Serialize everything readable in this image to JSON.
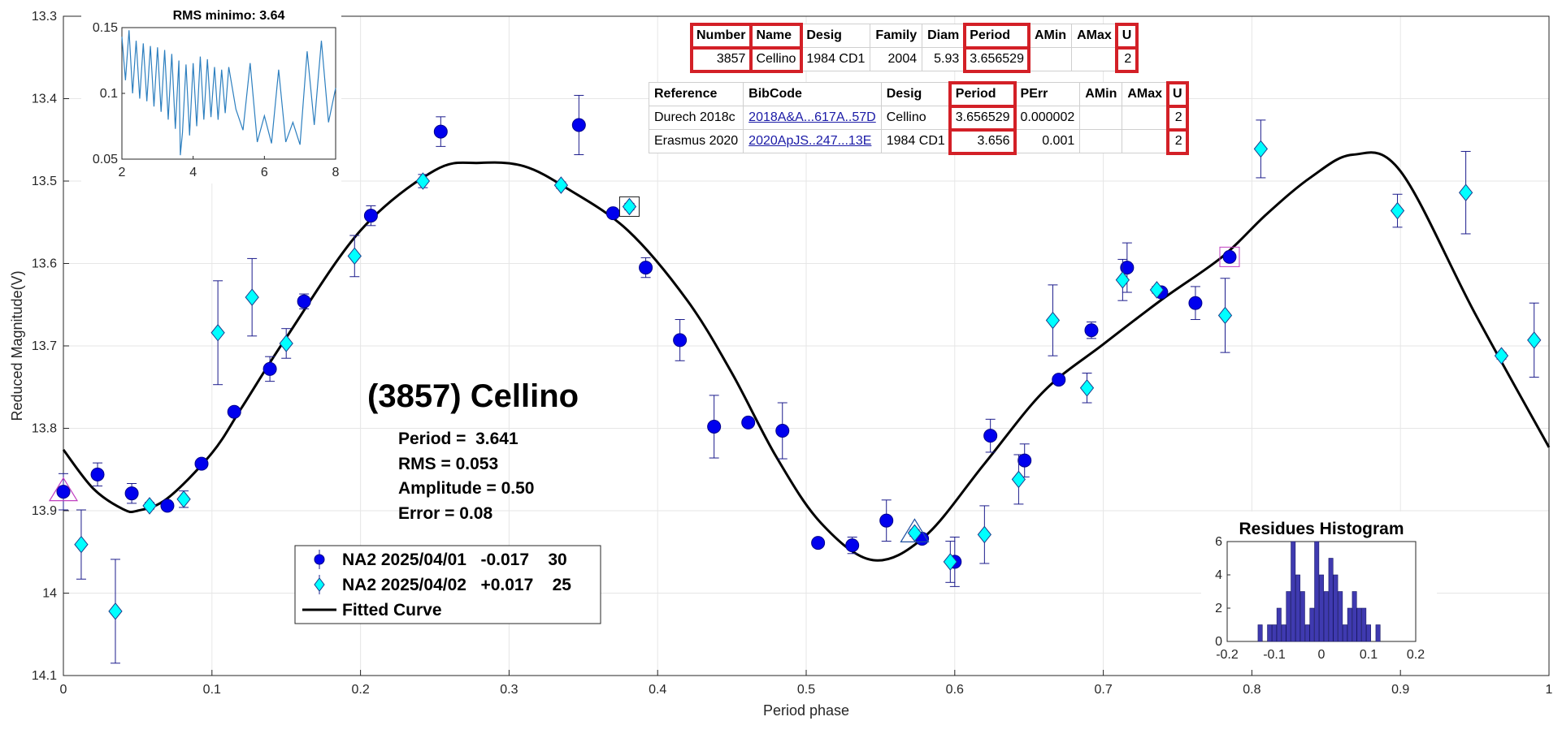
{
  "main_title": "(3857) Cellino",
  "stats": {
    "period": "Period =  3.641",
    "rms": "RMS = 0.053",
    "amplitude": "Amplitude = 0.50",
    "error": "Error = 0.08"
  },
  "legend": {
    "entries": [
      "NA2 2025/04/01   -0.017    30",
      "NA2 2025/04/02   +0.017    25",
      "Fitted Curve"
    ]
  },
  "table1": {
    "headers": [
      "Number",
      "Name",
      "Desig",
      "Family",
      "Diam",
      "Period",
      "AMin",
      "AMax",
      "U"
    ],
    "row": [
      "3857",
      "Cellino",
      "1984 CD1",
      "2004",
      "5.93",
      "3.656529",
      "",
      "",
      "2"
    ]
  },
  "table2": {
    "headers": [
      "Reference",
      "BibCode",
      "Desig",
      "Period",
      "PErr",
      "AMin",
      "AMax",
      "U"
    ],
    "rows": [
      [
        "Durech 2018c",
        "2018A&A...617A..57D",
        "Cellino",
        "3.656529",
        "0.000002",
        "",
        "",
        "2"
      ],
      [
        "Erasmus 2020",
        "2020ApJS..247...13E",
        "1984 CD1",
        "3.656",
        "0.001",
        "",
        "",
        "2"
      ]
    ]
  },
  "colors": {
    "series1": "#0000ee",
    "series2": "#00ffff",
    "curve": "#000000",
    "highlight": "#d32027",
    "histogram": "#3f3ab0"
  },
  "chart_data": [
    {
      "type": "scatter",
      "xlabel": "Period phase",
      "ylabel": "Reduced Magnitude(V)",
      "xlim": [
        0,
        1
      ],
      "ylim": [
        14.1,
        13.3
      ],
      "y_inverted": true,
      "grid": true,
      "xticks": [
        "0",
        "0.1",
        "0.2",
        "0.3",
        "0.4",
        "0.5",
        "0.6",
        "0.7",
        "0.8",
        "0.9",
        "1"
      ],
      "yticks": [
        "13.3",
        "13.4",
        "13.5",
        "13.6",
        "13.7",
        "13.8",
        "13.9",
        "14",
        "14.1"
      ],
      "series": [
        {
          "name": "NA2 2025/04/01",
          "marker": "circle",
          "points": [
            [
              0.0,
              13.877,
              0.022
            ],
            [
              0.023,
              13.856,
              0.014
            ],
            [
              0.046,
              13.879,
              0.012
            ],
            [
              0.07,
              13.894,
              0.004
            ],
            [
              0.093,
              13.843,
              0.004
            ],
            [
              0.115,
              13.78,
              0.004
            ],
            [
              0.139,
              13.728,
              0.015
            ],
            [
              0.162,
              13.646,
              0.009
            ],
            [
              0.207,
              13.542,
              0.012
            ],
            [
              0.254,
              13.44,
              0.018
            ],
            [
              0.347,
              13.432,
              0.036
            ],
            [
              0.37,
              13.539,
              0.004
            ],
            [
              0.392,
              13.605,
              0.012
            ],
            [
              0.415,
              13.693,
              0.025
            ],
            [
              0.438,
              13.798,
              0.038
            ],
            [
              0.461,
              13.793,
              0.004
            ],
            [
              0.484,
              13.803,
              0.034
            ],
            [
              0.508,
              13.939,
              0.004
            ],
            [
              0.531,
              13.942,
              0.01
            ],
            [
              0.554,
              13.912,
              0.025
            ],
            [
              0.578,
              13.934,
              0.004
            ],
            [
              0.6,
              13.962,
              0.03
            ],
            [
              0.624,
              13.809,
              0.02
            ],
            [
              0.647,
              13.839,
              0.02
            ],
            [
              0.67,
              13.741,
              0.004
            ],
            [
              0.692,
              13.681,
              0.01
            ],
            [
              0.716,
              13.605,
              0.03
            ],
            [
              0.739,
              13.635,
              0.004
            ],
            [
              0.762,
              13.648,
              0.02
            ],
            [
              0.785,
              13.592,
              0.004
            ]
          ]
        },
        {
          "name": "NA2 2025/04/02",
          "marker": "diamond",
          "points": [
            [
              0.012,
              13.941,
              0.042
            ],
            [
              0.035,
              14.022,
              0.063
            ],
            [
              0.058,
              13.894,
              0.004
            ],
            [
              0.081,
              13.886,
              0.01
            ],
            [
              0.104,
              13.684,
              0.063
            ],
            [
              0.127,
              13.641,
              0.047
            ],
            [
              0.15,
              13.697,
              0.018
            ],
            [
              0.196,
              13.591,
              0.025
            ],
            [
              0.242,
              13.5,
              0.008
            ],
            [
              0.335,
              13.505,
              0.004
            ],
            [
              0.381,
              13.531,
              0.004
            ],
            [
              0.573,
              13.927,
              0.004
            ],
            [
              0.597,
              13.962,
              0.025
            ],
            [
              0.62,
              13.929,
              0.035
            ],
            [
              0.643,
              13.862,
              0.03
            ],
            [
              0.666,
              13.669,
              0.043
            ],
            [
              0.689,
              13.751,
              0.018
            ],
            [
              0.713,
              13.62,
              0.025
            ],
            [
              0.736,
              13.632,
              0.004
            ],
            [
              0.782,
              13.663,
              0.045
            ],
            [
              0.806,
              13.461,
              0.035
            ],
            [
              0.898,
              13.536,
              0.02
            ],
            [
              0.944,
              13.514,
              0.05
            ],
            [
              0.968,
              13.712,
              0.004
            ],
            [
              0.99,
              13.693,
              0.045
            ]
          ]
        },
        {
          "name": "Fitted Curve",
          "marker": "line",
          "points": [
            [
              0.0,
              13.826
            ],
            [
              0.02,
              13.873
            ],
            [
              0.04,
              13.898
            ],
            [
              0.05,
              13.9
            ],
            [
              0.07,
              13.885
            ],
            [
              0.1,
              13.83
            ],
            [
              0.12,
              13.775
            ],
            [
              0.15,
              13.69
            ],
            [
              0.2,
              13.56
            ],
            [
              0.25,
              13.487
            ],
            [
              0.28,
              13.478
            ],
            [
              0.31,
              13.482
            ],
            [
              0.34,
              13.51
            ],
            [
              0.38,
              13.56
            ],
            [
              0.42,
              13.645
            ],
            [
              0.45,
              13.733
            ],
            [
              0.48,
              13.835
            ],
            [
              0.51,
              13.915
            ],
            [
              0.545,
              13.96
            ],
            [
              0.58,
              13.931
            ],
            [
              0.62,
              13.843
            ],
            [
              0.66,
              13.755
            ],
            [
              0.7,
              13.698
            ],
            [
              0.74,
              13.643
            ],
            [
              0.78,
              13.592
            ],
            [
              0.81,
              13.54
            ],
            [
              0.84,
              13.495
            ],
            [
              0.868,
              13.468
            ],
            [
              0.9,
              13.488
            ],
            [
              0.95,
              13.66
            ],
            [
              1.0,
              13.823
            ]
          ]
        }
      ]
    },
    {
      "type": "line",
      "title": "RMS minimo: 3.64",
      "xlim": [
        2,
        8
      ],
      "ylim": [
        0.05,
        0.15
      ],
      "xticks": [
        "2",
        "4",
        "6",
        "8"
      ],
      "yticks": [
        "0.05",
        "0.1",
        "0.15"
      ],
      "x": [
        2.0,
        2.1,
        2.2,
        2.3,
        2.4,
        2.5,
        2.6,
        2.7,
        2.8,
        2.9,
        3.0,
        3.1,
        3.2,
        3.3,
        3.4,
        3.5,
        3.6,
        3.64,
        3.7,
        3.8,
        3.9,
        4.0,
        4.1,
        4.2,
        4.3,
        4.4,
        4.5,
        4.6,
        4.7,
        4.8,
        4.9,
        5.0,
        5.2,
        5.4,
        5.6,
        5.8,
        6.0,
        6.2,
        6.4,
        6.6,
        6.8,
        7.0,
        7.2,
        7.4,
        7.6,
        7.8,
        8.0
      ],
      "values": [
        0.143,
        0.11,
        0.148,
        0.1,
        0.14,
        0.096,
        0.138,
        0.094,
        0.136,
        0.09,
        0.135,
        0.086,
        0.133,
        0.08,
        0.13,
        0.073,
        0.125,
        0.053,
        0.07,
        0.122,
        0.068,
        0.123,
        0.075,
        0.128,
        0.08,
        0.126,
        0.082,
        0.12,
        0.08,
        0.118,
        0.085,
        0.12,
        0.088,
        0.072,
        0.123,
        0.063,
        0.083,
        0.062,
        0.118,
        0.063,
        0.078,
        0.061,
        0.132,
        0.076,
        0.14,
        0.078,
        0.104
      ]
    },
    {
      "type": "bar",
      "title": "Residues Histogram",
      "xlim": [
        -0.2,
        0.2
      ],
      "ylim": [
        0,
        6
      ],
      "xticks": [
        "-0.2",
        "-0.1",
        "0",
        "0.1",
        "0.2"
      ],
      "yticks": [
        "0",
        "2",
        "4",
        "6"
      ],
      "bin_centers": [
        -0.13,
        -0.11,
        -0.1,
        -0.09,
        -0.08,
        -0.07,
        -0.06,
        -0.05,
        -0.04,
        -0.03,
        -0.02,
        -0.01,
        0.0,
        0.01,
        0.02,
        0.03,
        0.04,
        0.05,
        0.06,
        0.07,
        0.08,
        0.09,
        0.1,
        0.11,
        0.12
      ],
      "values": [
        1,
        1,
        1,
        2,
        1,
        3,
        6,
        4,
        3,
        1,
        2,
        6,
        4,
        3,
        5,
        4,
        3,
        1,
        2,
        3,
        2,
        2,
        1,
        0,
        1
      ]
    }
  ]
}
